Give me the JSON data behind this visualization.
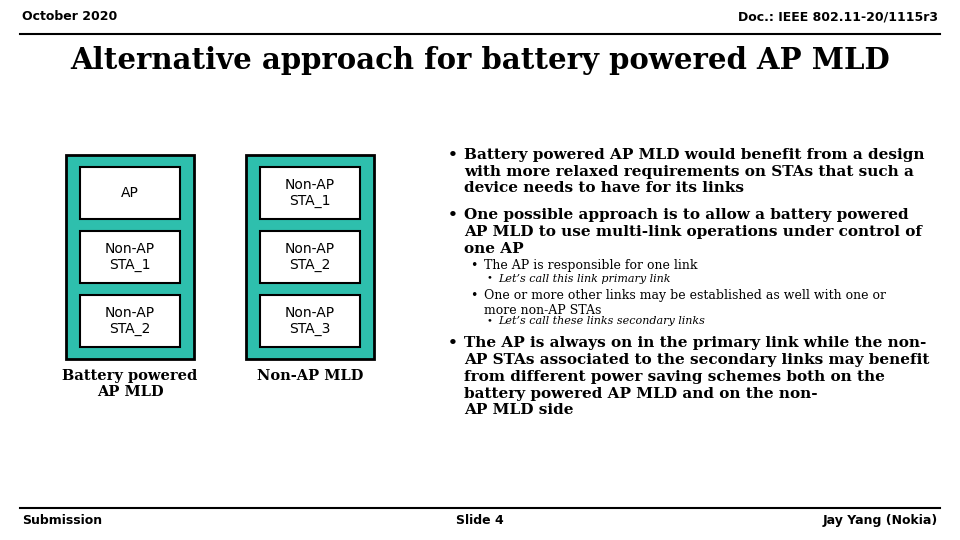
{
  "bg_color": "#ffffff",
  "header_left": "October 2020",
  "header_right": "Doc.: IEEE 802.11-20/1115r3",
  "title": "Alternative approach for battery powered AP MLD",
  "footer_left": "Submission",
  "footer_center": "Slide 4",
  "footer_right": "Jay Yang (Nokia)",
  "teal_color": "#2EBFAD",
  "box_bg": "#ffffff",
  "box_border": "#000000",
  "left_diagram": {
    "label": "Battery powered\nAP MLD",
    "boxes": [
      "AP",
      "Non-AP\nSTA_1",
      "Non-AP\nSTA_2"
    ]
  },
  "right_diagram": {
    "label": "Non-AP MLD",
    "boxes": [
      "Non-AP\nSTA_1",
      "Non-AP\nSTA_2",
      "Non-AP\nSTA_3"
    ]
  },
  "bullet1": "Battery powered AP MLD would benefit from a design\nwith more relaxed requirements on STAs that such a\ndevice needs to have for its links",
  "bullet2": "One possible approach is to allow a battery powered\nAP MLD to use multi-link operations under control of\none AP",
  "sub_bullet2a": "The AP is responsible for one link",
  "sub_bullet2a1": "Let’s call this link primary link",
  "sub_bullet2b": "One or more other links may be established as well with one or\nmore non-AP STAs",
  "sub_bullet2b1": "Let’s call these links secondary links",
  "bullet3": "The AP is always on in the primary link while the non-\nAP STAs associated to the secondary links may benefit\nfrom different power saving schemes both on the\nbattery powered AP MLD and on the non-\nAP MLD side"
}
